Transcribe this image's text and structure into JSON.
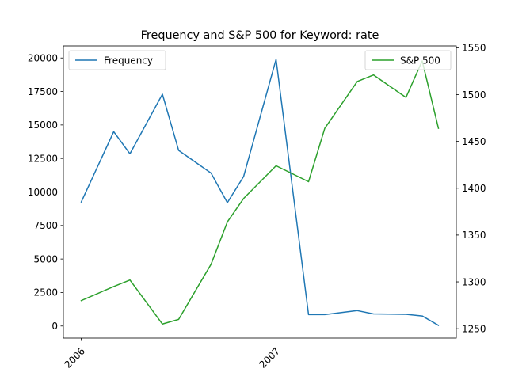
{
  "chart_data": {
    "type": "line",
    "title": "Frequency and S&P 500 for Keyword: rate",
    "x": [
      "2006-01",
      "2006-03",
      "2006-04",
      "2006-06",
      "2006-07",
      "2006-09",
      "2006-10",
      "2006-11",
      "2007-01",
      "2007-03",
      "2007-04",
      "2007-06",
      "2007-07",
      "2007-09",
      "2007-10",
      "2007-11"
    ],
    "x_ticks": [
      "2006",
      "2007"
    ],
    "series": [
      {
        "name": "Frequency",
        "axis": "left",
        "color": "#1f77b4",
        "values": [
          9250,
          14500,
          12850,
          17300,
          13100,
          11400,
          9200,
          11150,
          19900,
          850,
          850,
          1150,
          900,
          870,
          750,
          50
        ]
      },
      {
        "name": "S&P 500",
        "axis": "right",
        "color": "#2ca02c",
        "values": [
          1280,
          1295,
          1302,
          1255,
          1260,
          1319,
          1364,
          1389,
          1424,
          1407,
          1464,
          1514,
          1521,
          1497,
          1536,
          1464
        ]
      }
    ],
    "y_left": {
      "ylim": [
        -900,
        20900
      ],
      "ticks": [
        0,
        2500,
        5000,
        7500,
        10000,
        12500,
        15000,
        17500,
        20000
      ],
      "tick_labels": [
        "0",
        "2500",
        "5000",
        "7500",
        "10000",
        "12500",
        "15000",
        "17500",
        "20000"
      ]
    },
    "y_right": {
      "ylim": [
        1240,
        1552
      ],
      "ticks": [
        1250,
        1300,
        1350,
        1400,
        1450,
        1500,
        1550
      ],
      "tick_labels": [
        "1250",
        "1300",
        "1350",
        "1400",
        "1450",
        "1500",
        "1550"
      ]
    },
    "legend_left": "upper-left",
    "legend_right": "upper-right",
    "grid": false
  }
}
